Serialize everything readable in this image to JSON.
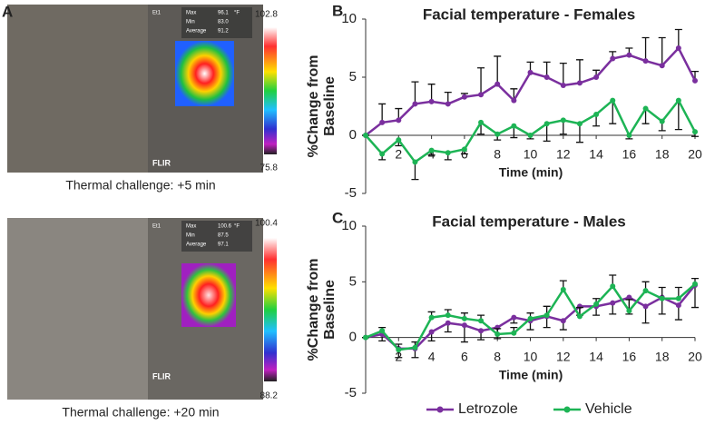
{
  "panel_a": {
    "label": "A",
    "images": [
      {
        "caption": "Thermal challenge: +5 min",
        "scale_max": "102.8",
        "scale_min": "75.8",
        "tag": "Et1",
        "max_label": "Max",
        "max": "96.1",
        "unit": "°F",
        "min_label": "Min",
        "min": "83.0",
        "average_label": "Average",
        "average": "91.2",
        "brand": "FLIR"
      },
      {
        "caption": "Thermal challenge: +20 min",
        "scale_max": "100.4",
        "scale_min": "88.2",
        "tag": "Et1",
        "max_label": "Max",
        "max": "100.6",
        "unit": "°F",
        "min_label": "Min",
        "min": "87.5",
        "average_label": "Average",
        "average": "97.1",
        "brand": "FLIR"
      }
    ]
  },
  "chart_data": [
    {
      "type": "line",
      "label": "B",
      "title": "Facial temperature  - Females",
      "xlabel": "Time (min)",
      "ylabel": [
        "%Change from",
        "Baseline"
      ],
      "x": [
        0,
        1,
        2,
        3,
        4,
        5,
        6,
        7,
        8,
        9,
        10,
        11,
        12,
        13,
        14,
        15,
        16,
        17,
        18,
        19,
        20
      ],
      "xlim": [
        0,
        20
      ],
      "xticks": [
        2,
        4,
        6,
        8,
        10,
        12,
        14,
        16,
        18,
        20
      ],
      "ylim": [
        -5,
        10
      ],
      "yticks": [
        -5,
        0,
        5,
        10
      ],
      "series": [
        {
          "name": "Letrozole",
          "color": "#7a2f9e",
          "error_direction": "up",
          "values": [
            0,
            1.1,
            1.3,
            2.7,
            2.9,
            2.7,
            3.3,
            3.5,
            4.4,
            3.0,
            5.4,
            5.0,
            4.3,
            4.5,
            5.0,
            6.6,
            6.9,
            6.4,
            6.0,
            7.5,
            4.7
          ],
          "errors": [
            0,
            1.6,
            1.0,
            1.9,
            1.5,
            1.0,
            0.3,
            2.3,
            2.4,
            1.0,
            0.9,
            1.3,
            1.9,
            2.0,
            0.6,
            0.6,
            0.6,
            2.0,
            2.4,
            1.6,
            0.8
          ]
        },
        {
          "name": "Vehicle",
          "color": "#1db455",
          "error_direction": "down",
          "values": [
            0,
            -1.6,
            -0.4,
            -2.3,
            -1.3,
            -1.5,
            -1.2,
            1.1,
            0.1,
            0.8,
            0.0,
            1.0,
            1.3,
            1.0,
            1.8,
            3.0,
            0.0,
            2.3,
            1.2,
            3.0,
            0.3
          ],
          "errors": [
            0,
            0.5,
            0.5,
            1.5,
            0.4,
            0.6,
            0.4,
            1.0,
            0.5,
            1.0,
            0.3,
            1.5,
            1.2,
            1.6,
            1.0,
            2.0,
            0.3,
            1.3,
            0.8,
            2.5,
            0.4
          ]
        }
      ]
    },
    {
      "type": "line",
      "label": "C",
      "title": "Facial temperature  - Males",
      "xlabel": "Time (min)",
      "ylabel": [
        "%Change from",
        "Baseline"
      ],
      "x": [
        0,
        1,
        2,
        3,
        4,
        5,
        6,
        7,
        8,
        9,
        10,
        11,
        12,
        13,
        14,
        15,
        16,
        17,
        18,
        19,
        20
      ],
      "xlim": [
        0,
        20
      ],
      "xticks": [
        2,
        4,
        6,
        8,
        10,
        12,
        14,
        16,
        18,
        20
      ],
      "ylim": [
        -5,
        10
      ],
      "yticks": [
        -5,
        0,
        5,
        10
      ],
      "legend": "bottom",
      "series": [
        {
          "name": "Letrozole",
          "color": "#7a2f9e",
          "error_direction": "down",
          "values": [
            0,
            0.3,
            -1.0,
            -1.0,
            0.5,
            1.3,
            1.1,
            0.6,
            0.9,
            1.8,
            1.5,
            1.9,
            1.5,
            2.8,
            2.8,
            3.1,
            3.6,
            2.8,
            3.6,
            2.9,
            4.7
          ],
          "errors": [
            0,
            0.6,
            0.8,
            0.8,
            0.8,
            0.8,
            1.5,
            0.8,
            1.0,
            0.5,
            0.8,
            1.0,
            0.8,
            0.8,
            0.8,
            1.0,
            1.5,
            1.5,
            1.5,
            1.3,
            2.0
          ]
        },
        {
          "name": "Vehicle",
          "color": "#1db455",
          "error_direction": "up",
          "values": [
            0,
            0.6,
            -1.1,
            -0.9,
            1.8,
            2.0,
            1.7,
            1.5,
            0.3,
            0.4,
            1.7,
            2.0,
            4.3,
            1.9,
            3.0,
            4.6,
            2.4,
            4.2,
            3.5,
            3.5,
            4.8
          ],
          "errors": [
            0,
            0.3,
            0.5,
            0.5,
            0.5,
            0.5,
            0.5,
            0.5,
            0.5,
            0.5,
            0.5,
            0.8,
            0.8,
            0.8,
            0.5,
            1.0,
            1.0,
            0.8,
            1.0,
            1.0,
            0.5
          ]
        }
      ]
    }
  ]
}
